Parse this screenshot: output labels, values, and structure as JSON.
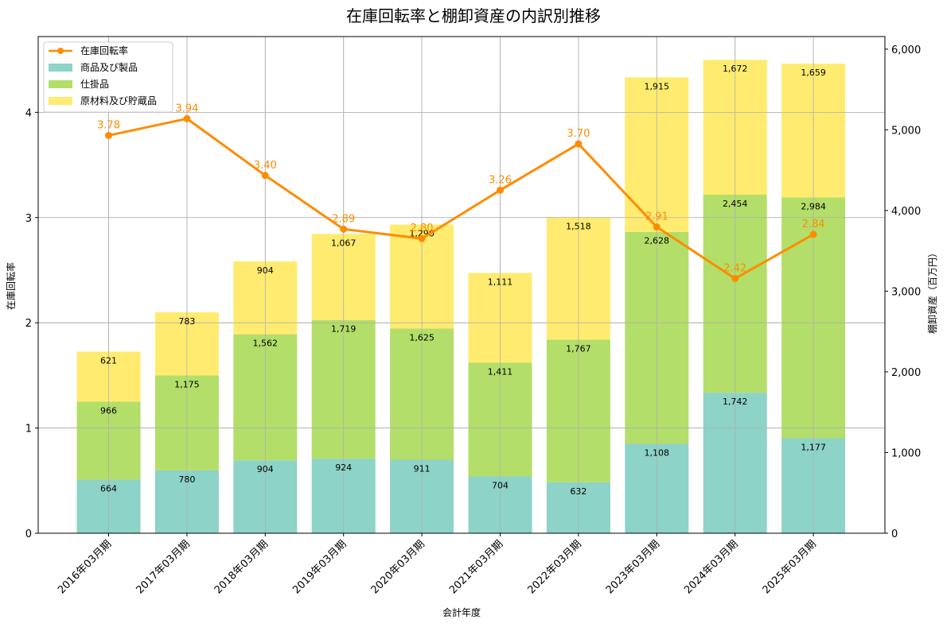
{
  "chart_data": {
    "type": "bar+line",
    "title": "在庫回転率と棚卸資産の内訳別推移",
    "xlabel": "会計年度",
    "ylabel_left": "在庫回転率",
    "ylabel_right": "棚卸資産（百万円）",
    "categories": [
      "2016年03月期",
      "2017年03月期",
      "2018年03月期",
      "2019年03月期",
      "2020年03月期",
      "2021年03月期",
      "2022年03月期",
      "2023年03月期",
      "2024年03月期",
      "2025年03月期"
    ],
    "bar_series": [
      {
        "name": "商品及び製品",
        "color": "#8dd3c7",
        "values": [
          664,
          780,
          904,
          924,
          911,
          704,
          632,
          1108,
          1742,
          1177
        ]
      },
      {
        "name": "仕掛品",
        "color": "#b3de69",
        "values": [
          966,
          1175,
          1562,
          1719,
          1625,
          1411,
          1767,
          2628,
          2454,
          2984
        ]
      },
      {
        "name": "原材料及び貯蔵品",
        "color": "#ffeb6f",
        "values": [
          621,
          783,
          904,
          1067,
          1290,
          1111,
          1518,
          1915,
          1672,
          1659
        ]
      }
    ],
    "line_series": {
      "name": "在庫回転率",
      "color": "#ff8c00",
      "values": [
        3.78,
        3.94,
        3.4,
        2.89,
        2.8,
        3.26,
        3.7,
        2.91,
        2.42,
        2.84
      ]
    },
    "left_axis": {
      "ticks": [
        0,
        1,
        2,
        3,
        4
      ],
      "ylim": [
        0,
        4.72
      ]
    },
    "right_axis": {
      "ticks": [
        "0",
        "1,000",
        "2,000",
        "3,000",
        "4,000",
        "5,000",
        "6,000"
      ],
      "ylim": [
        0,
        6156
      ]
    },
    "grid": true,
    "legend_position": "upper left",
    "legend": [
      "在庫回転率",
      "商品及び製品",
      "仕掛品",
      "原材料及び貯蔵品"
    ]
  }
}
